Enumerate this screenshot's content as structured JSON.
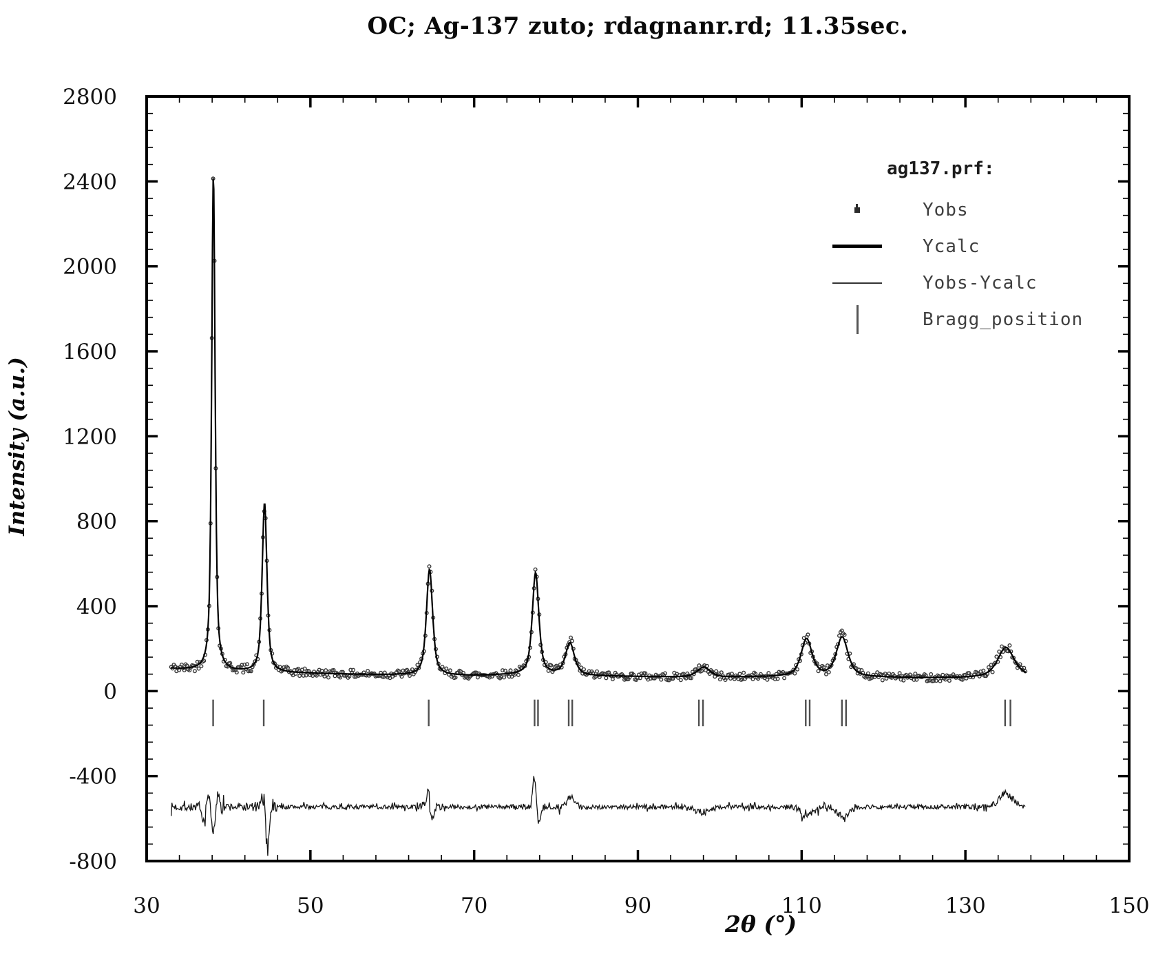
{
  "chart_data": {
    "type": "scatter",
    "kind": "xrd-rietveld-refinement",
    "title": "OC; Ag-137 zuto; rdagnanr.rd; 11.35sec.",
    "xlabel": "2θ (°)",
    "ylabel": "Intensity (a.u.)",
    "xlim": [
      30,
      150
    ],
    "ylim": [
      -800,
      2800
    ],
    "x_major_step": 20,
    "x_minor_step": 4,
    "y_major_step": 400,
    "y_minor_step": 80,
    "x_tick_labels": [
      "30",
      "50",
      "70",
      "90",
      "110",
      "130",
      "150"
    ],
    "y_tick_labels": [
      "2800",
      "2400",
      "2000",
      "1600",
      "1200",
      "800",
      "400",
      "0",
      "-400",
      "-800"
    ],
    "grid": false,
    "frame_ticks_all_sides": true,
    "legend": {
      "position": "upper-right",
      "title": "ag137.prf:",
      "entries": [
        {
          "label": "Yobs",
          "marker": "dot"
        },
        {
          "label": "Ycalc",
          "marker": "thick-line"
        },
        {
          "label": "Yobs-Ycalc",
          "marker": "thin-line"
        },
        {
          "label": "Bragg_position",
          "marker": "vertical-bar"
        }
      ]
    },
    "data_two_theta_range": [
      33.0,
      137.4
    ],
    "background_points": [
      [
        33,
        105
      ],
      [
        36,
        97
      ],
      [
        40,
        90
      ],
      [
        45,
        86
      ],
      [
        50,
        83
      ],
      [
        55,
        79
      ],
      [
        60,
        76
      ],
      [
        65,
        73
      ],
      [
        70,
        72
      ],
      [
        75,
        76
      ],
      [
        80,
        76
      ],
      [
        85,
        70
      ],
      [
        90,
        68
      ],
      [
        95,
        65
      ],
      [
        100,
        64
      ],
      [
        105,
        66
      ],
      [
        110,
        68
      ],
      [
        115,
        67
      ],
      [
        120,
        64
      ],
      [
        125,
        62
      ],
      [
        130,
        62
      ],
      [
        135,
        66
      ],
      [
        137.4,
        68
      ]
    ],
    "peaks": [
      {
        "two_theta": 38.15,
        "calc_height": 2350,
        "fwhm": 0.5,
        "obs_apex": 2550
      },
      {
        "two_theta": 44.4,
        "calc_height": 800,
        "fwhm": 0.7,
        "obs_apex": 890
      },
      {
        "two_theta": 64.55,
        "calc_height": 500,
        "fwhm": 0.9,
        "obs_apex": 600
      },
      {
        "two_theta": 77.5,
        "calc_height": 480,
        "fwhm": 0.95,
        "obs_apex": 620
      },
      {
        "two_theta": 81.7,
        "calc_height": 150,
        "fwhm": 1.3,
        "obs_apex": 210
      },
      {
        "two_theta": 98.05,
        "calc_height": 48,
        "fwhm": 1.9,
        "obs_apex": 130
      },
      {
        "two_theta": 110.6,
        "calc_height": 175,
        "fwhm": 1.6,
        "obs_apex": 250
      },
      {
        "two_theta": 114.95,
        "calc_height": 185,
        "fwhm": 1.7,
        "obs_apex": 260
      },
      {
        "two_theta": 134.95,
        "calc_height": 140,
        "fwhm": 2.4,
        "obs_apex": 210
      }
    ],
    "bragg_positions": [
      38.12,
      44.3,
      64.45,
      77.38,
      77.8,
      81.55,
      81.98,
      97.45,
      97.95,
      110.5,
      110.98,
      114.92,
      115.42,
      134.85,
      135.5
    ],
    "bragg_tick_intensity_span": [
      -40,
      -165
    ],
    "difference_baseline": -545,
    "difference_spikes": [
      {
        "x": 36.9,
        "a": -70,
        "w": 0.25
      },
      {
        "x": 37.6,
        "a": 60,
        "w": 0.2
      },
      {
        "x": 38.2,
        "a": -120,
        "w": 0.3
      },
      {
        "x": 38.7,
        "a": 80,
        "w": 0.25
      },
      {
        "x": 44.3,
        "a": 60,
        "w": 0.2
      },
      {
        "x": 44.75,
        "a": -215,
        "w": 0.22
      },
      {
        "x": 64.4,
        "a": 95,
        "w": 0.22
      },
      {
        "x": 64.8,
        "a": -70,
        "w": 0.25
      },
      {
        "x": 77.35,
        "a": 150,
        "w": 0.22
      },
      {
        "x": 77.9,
        "a": -75,
        "w": 0.3
      },
      {
        "x": 81.8,
        "a": 45,
        "w": 0.5
      },
      {
        "x": 98.0,
        "a": -25,
        "w": 1.0
      },
      {
        "x": 110.6,
        "a": -45,
        "w": 0.8
      },
      {
        "x": 115.0,
        "a": -45,
        "w": 0.8
      },
      {
        "x": 134.9,
        "a": 65,
        "w": 1.0
      }
    ],
    "colors": {
      "frame": "#000000",
      "yobs_marker": "#383838",
      "ycalc_line": "#000000",
      "difference_line": "#151515",
      "bragg_tick": "#4f4f4f",
      "tick_label": "#111111",
      "legend_text": "#3f3f3f",
      "legend_title": "#1c1c1c"
    }
  }
}
